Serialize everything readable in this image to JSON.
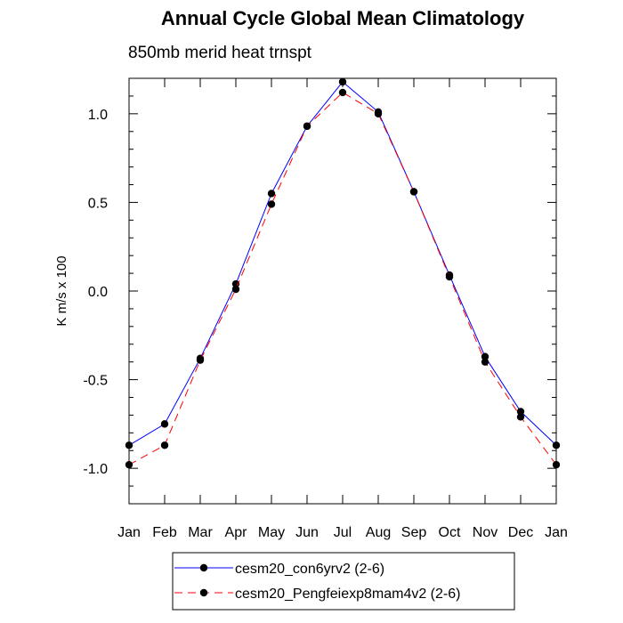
{
  "chart_data": {
    "type": "line",
    "title": "Annual Cycle Global Mean Climatology",
    "subtitle": "850mb merid heat trnspt",
    "ylabel": "K m/s x 100",
    "xlabel": "",
    "categories": [
      "Jan",
      "Feb",
      "Mar",
      "Apr",
      "May",
      "Jun",
      "Jul",
      "Aug",
      "Sep",
      "Oct",
      "Nov",
      "Dec",
      "Jan"
    ],
    "ylim": [
      -1.2,
      1.2
    ],
    "yticks": [
      1.0,
      0.5,
      0.0,
      -0.5,
      -1.0
    ],
    "ytick_labels": [
      "1.0",
      "0.5",
      "0.0",
      "-0.5",
      "-1.0"
    ],
    "grid": false,
    "legend_position": "bottom",
    "series": [
      {
        "name": "cesm20_con6yrv2 (2-6)",
        "color": "#0000ff",
        "dash": "solid",
        "values": [
          -0.87,
          -0.75,
          -0.38,
          0.04,
          0.55,
          0.93,
          1.18,
          1.01,
          0.56,
          0.09,
          -0.37,
          -0.68,
          -0.87
        ]
      },
      {
        "name": "cesm20_Pengfeiexp8mam4v2 (2-6)",
        "color": "#ff0000",
        "dash": "dashed",
        "values": [
          -0.98,
          -0.87,
          -0.39,
          0.01,
          0.49,
          0.93,
          1.12,
          1.0,
          0.56,
          0.08,
          -0.4,
          -0.71,
          -0.98
        ]
      }
    ]
  }
}
